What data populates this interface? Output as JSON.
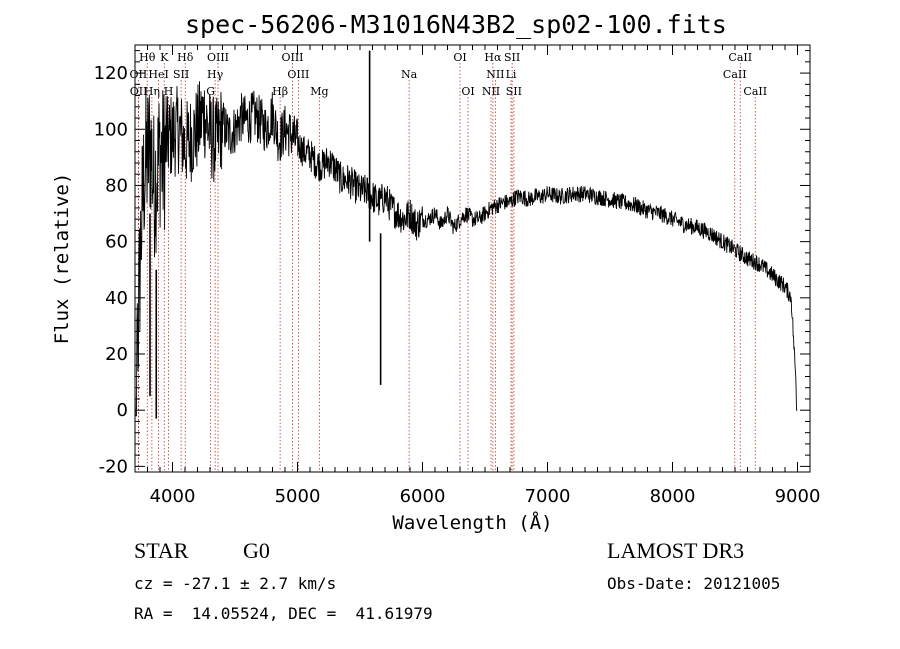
{
  "title": "spec-56206-M31016N43B2_sp02-100.fits",
  "chart_data": {
    "type": "line",
    "xlabel": "Wavelength (Å)",
    "ylabel": "Flux (relative)",
    "xlim": [
      3700,
      9100
    ],
    "ylim": [
      -22,
      130
    ],
    "xticks": [
      4000,
      5000,
      6000,
      7000,
      8000,
      9000
    ],
    "xtick_labels": [
      "4000",
      "5000",
      "6000",
      "7000",
      "8000",
      "9000"
    ],
    "yticks": [
      -20,
      0,
      20,
      40,
      60,
      80,
      100,
      120
    ],
    "ytick_labels": [
      "-20",
      "0",
      "20",
      "40",
      "60",
      "80",
      "100",
      "120"
    ],
    "grid": false,
    "series": [
      {
        "name": "spectrum",
        "x": [
          3700,
          3725,
          3750,
          3775,
          3800,
          3825,
          3850,
          3875,
          3900,
          3925,
          3950,
          3975,
          4000,
          4050,
          4100,
          4150,
          4200,
          4250,
          4300,
          4350,
          4400,
          4450,
          4500,
          4550,
          4600,
          4650,
          4700,
          4750,
          4800,
          4850,
          4900,
          4950,
          5000,
          5050,
          5100,
          5150,
          5200,
          5250,
          5300,
          5350,
          5400,
          5450,
          5500,
          5550,
          5600,
          5650,
          5700,
          5750,
          5800,
          5850,
          5900,
          5950,
          6000,
          6050,
          6100,
          6150,
          6200,
          6250,
          6300,
          6350,
          6400,
          6450,
          6500,
          6550,
          6600,
          6650,
          6700,
          6750,
          6800,
          6850,
          6900,
          6950,
          7000,
          7100,
          7200,
          7300,
          7400,
          7500,
          7600,
          7700,
          7800,
          7900,
          8000,
          8100,
          8200,
          8300,
          8400,
          8500,
          8600,
          8700,
          8800,
          8900,
          8950,
          9000
        ],
        "y": [
          0,
          30,
          65,
          85,
          90,
          95,
          80,
          85,
          92,
          88,
          95,
          97,
          98,
          100,
          94,
          97,
          100,
          106,
          98,
          95,
          102,
          98,
          100,
          104,
          103,
          105,
          103,
          100,
          106,
          96,
          100,
          98,
          95,
          92,
          91,
          88,
          87,
          89,
          86,
          82,
          82,
          80,
          78,
          78,
          76,
          74,
          76,
          72,
          70,
          68,
          70,
          66,
          68,
          68,
          70,
          66,
          70,
          65,
          68,
          70,
          68,
          68,
          70,
          72,
          73,
          74,
          74,
          76,
          76,
          75,
          76,
          76,
          77,
          76,
          77,
          77,
          76,
          75,
          74,
          73,
          71,
          70,
          68,
          66,
          65,
          63,
          60,
          57,
          54,
          52,
          48,
          44,
          40,
          0
        ]
      }
    ],
    "annotations": [
      {
        "x": 5665,
        "y_min": 9,
        "y_max": 63,
        "kind": "sky-line"
      },
      {
        "x": 5577,
        "y_min": 60,
        "y_max": 128,
        "kind": "sky-line"
      },
      {
        "x": 3820,
        "y_min": 5,
        "y_max": 70,
        "kind": "noise-spike"
      },
      {
        "x": 3870,
        "y_min": -3,
        "y_max": 50,
        "kind": "noise-spike"
      }
    ],
    "line_markers": [
      {
        "label": "Hθ",
        "x": 3798,
        "row": 0
      },
      {
        "label": "K",
        "x": 3934,
        "row": 0
      },
      {
        "label": "Hδ",
        "x": 4102,
        "row": 0
      },
      {
        "label": "OIII",
        "x": 4364,
        "row": 0
      },
      {
        "label": "OIII",
        "x": 4960,
        "row": 0
      },
      {
        "label": "OI",
        "x": 6300,
        "row": 0
      },
      {
        "label": "Hα",
        "x": 6563,
        "row": 0
      },
      {
        "label": "SII",
        "x": 6717,
        "row": 0
      },
      {
        "label": "CaII",
        "x": 8542,
        "row": 0
      },
      {
        "label": "OII",
        "x": 3727,
        "row": 1
      },
      {
        "label": "HeI",
        "x": 3889,
        "row": 1
      },
      {
        "label": "SII",
        "x": 4069,
        "row": 1
      },
      {
        "label": "Hγ",
        "x": 4341,
        "row": 1
      },
      {
        "label": "OIII",
        "x": 5007,
        "row": 1
      },
      {
        "label": "Na",
        "x": 5893,
        "row": 1
      },
      {
        "label": "NII",
        "x": 6583,
        "row": 1
      },
      {
        "label": "Li",
        "x": 6708,
        "row": 1
      },
      {
        "label": "CaII",
        "x": 8498,
        "row": 1
      },
      {
        "label": "OII",
        "x": 3729,
        "row": 2
      },
      {
        "label": "Hη",
        "x": 3835,
        "row": 2
      },
      {
        "label": "H",
        "x": 3968,
        "row": 2
      },
      {
        "label": "G",
        "x": 4305,
        "row": 2
      },
      {
        "label": "Hβ",
        "x": 4861,
        "row": 2
      },
      {
        "label": "Mg",
        "x": 5175,
        "row": 2
      },
      {
        "label": "OI",
        "x": 6364,
        "row": 2
      },
      {
        "label": "NII",
        "x": 6548,
        "row": 2
      },
      {
        "label": "SII",
        "x": 6731,
        "row": 2
      },
      {
        "label": "CaII",
        "x": 8662,
        "row": 2
      }
    ]
  },
  "info": {
    "class": "STAR",
    "subclass": "G0",
    "survey": "LAMOST DR3",
    "cz": "cz = -27.1 ± 2.7 km/s",
    "obs_date": "Obs-Date: 20121005",
    "radec": "RA =  14.05524, DEC =  41.61979"
  }
}
